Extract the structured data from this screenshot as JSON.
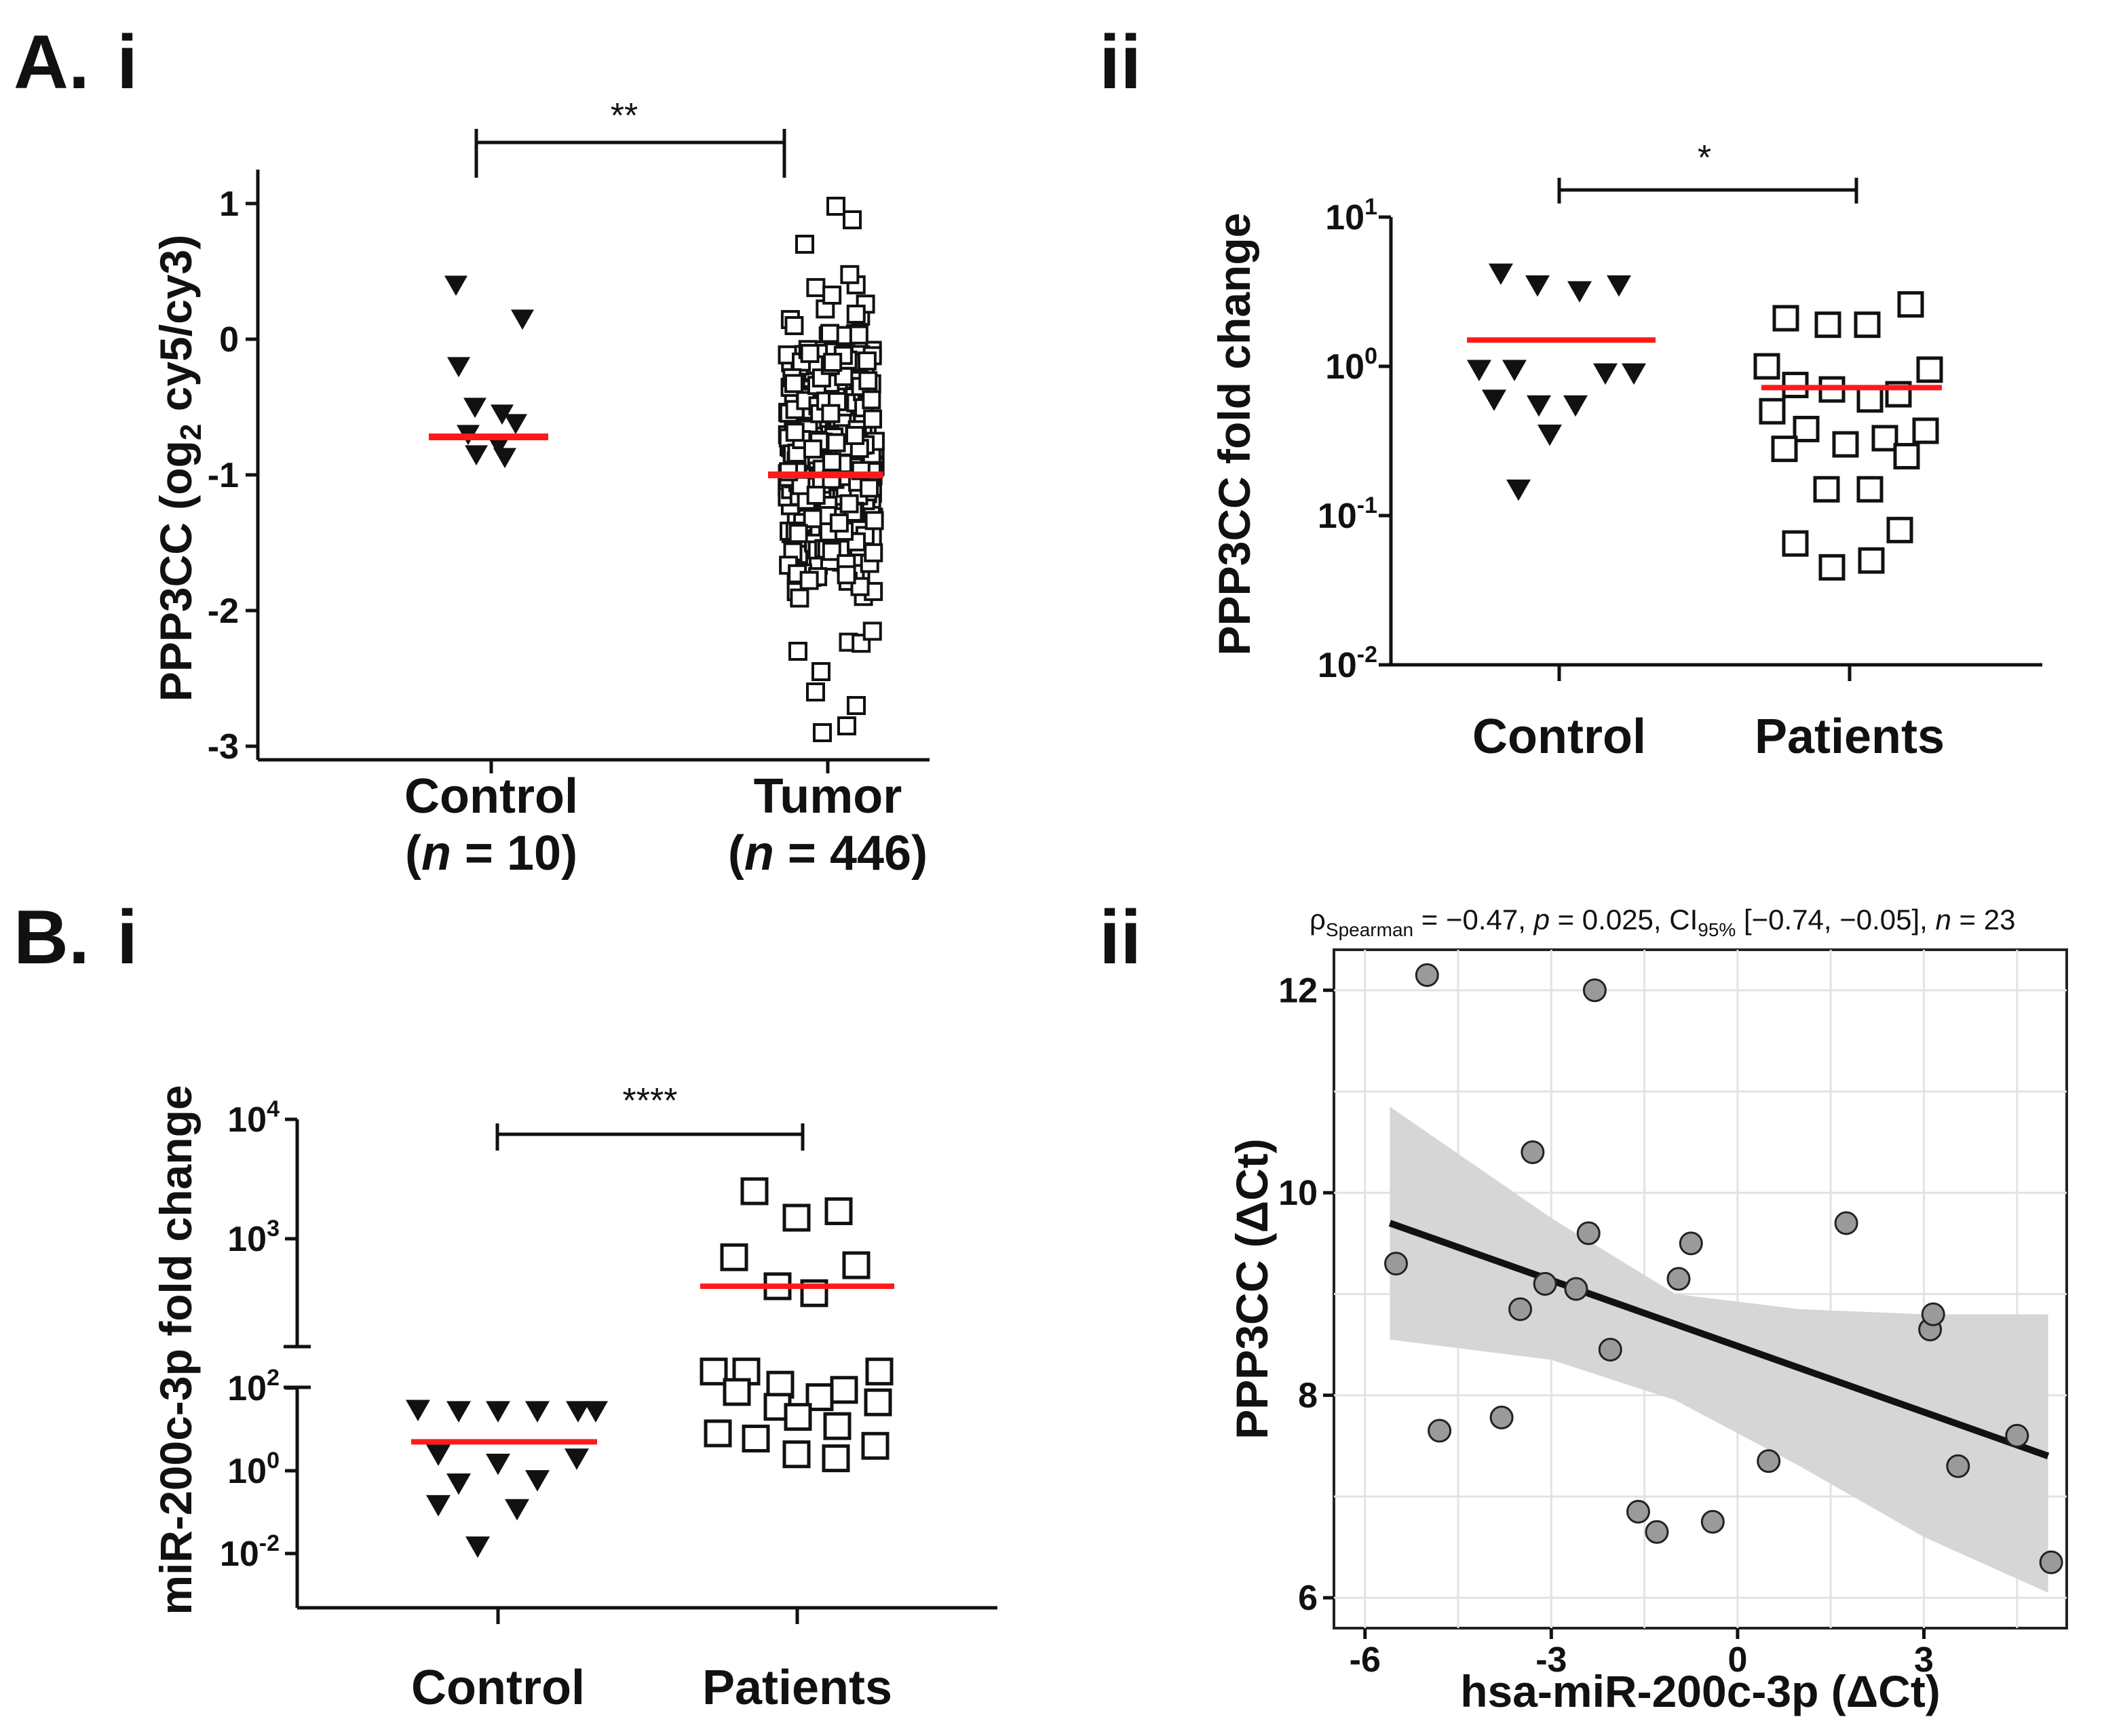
{
  "panel_labels": {
    "a": "A.",
    "a_i": "i",
    "a_ii": "ii",
    "b": "B.",
    "b_i": "i",
    "b_ii": "ii"
  },
  "colors": {
    "median_line": "#ff1a1a",
    "marker": "#111111",
    "scatter_fill": "#9a9a9a",
    "ci_band": "#d6d6d6"
  },
  "chart_data": [
    {
      "id": "A_i",
      "type": "scatter",
      "title": "",
      "ylabel_main": "PPP3CC (og",
      "ylabel_sub": "2",
      "ylabel_tail": " cy5/cy3)",
      "ylim": [
        -3,
        1
      ],
      "yticks": [
        1,
        0,
        -1,
        -2,
        -3
      ],
      "ytick_labels": [
        "1",
        "0",
        "-1",
        "-2",
        "-3"
      ],
      "categories": [
        {
          "label": "Control",
          "n_prefix": "(",
          "n_var": "n",
          "n_text": " = 10)",
          "marker": "triangle-down",
          "values": [
            0.4,
            0.15,
            -0.2,
            -0.5,
            -0.55,
            -0.62,
            -0.7,
            -0.78,
            -0.85,
            -0.87
          ],
          "median": -0.72
        },
        {
          "label": "Tumor",
          "n_prefix": "(",
          "n_var": "n",
          "n_text": " = 446)",
          "marker": "square-open",
          "range": [
            -2.9,
            0.98
          ],
          "n": 446,
          "median": -1.0,
          "outliers": [
            0.98,
            0.88,
            0.7,
            -2.3,
            -2.45,
            -2.6,
            -2.7,
            -2.85,
            -2.9
          ]
        }
      ],
      "significance": "**"
    },
    {
      "id": "A_ii",
      "type": "scatter",
      "ylabel": "PPP3CC fold change",
      "yscale": "log",
      "ylim_exp": [
        -2,
        1
      ],
      "ytick_exps": [
        1,
        0,
        -1,
        -2
      ],
      "ytick_base": "10",
      "ytick_exp_labels": [
        "1",
        "0",
        "-1",
        "-2"
      ],
      "categories": [
        {
          "label": "Control",
          "marker": "triangle-down",
          "values": [
            4.2,
            3.5,
            3.2,
            3.5,
            0.95,
            0.9,
            0.95,
            0.9,
            0.6,
            0.55,
            0.55,
            0.35,
            0.15
          ],
          "median": 1.5
        },
        {
          "label": "Patients",
          "marker": "square-open",
          "values": [
            2.6,
            2.1,
            1.9,
            1.9,
            1.0,
            0.95,
            0.75,
            0.7,
            0.65,
            0.6,
            0.5,
            0.38,
            0.37,
            0.33,
            0.3,
            0.28,
            0.25,
            0.15,
            0.15,
            0.08,
            0.065,
            0.05,
            0.045
          ],
          "median": 0.72
        }
      ],
      "significance": "*"
    },
    {
      "id": "B_i",
      "type": "scatter",
      "ylabel": "miR-200c-3p fold change",
      "yscale": "log-broken",
      "ytick_base": "10",
      "ytick_exp_labels": [
        "4",
        "3",
        "2",
        "0",
        "-2"
      ],
      "ytick_exps": [
        4,
        3,
        2,
        0,
        -2
      ],
      "categories": [
        {
          "label": "Control",
          "marker": "triangle-down",
          "values": [
            30,
            28,
            28,
            28,
            28,
            28,
            2.5,
            2.0,
            1.5,
            0.6,
            0.5,
            0.15,
            0.12,
            0.015
          ],
          "median": 5
        },
        {
          "label": "Patients",
          "marker": "square-open",
          "values": [
            2500,
            1700,
            1500,
            700,
            600,
            400,
            350,
            250,
            250,
            250,
            120,
            90,
            80,
            60,
            45,
            35,
            20,
            12,
            8,
            6,
            4,
            2.5,
            2.0
          ],
          "median": 400
        }
      ],
      "significance": "****"
    },
    {
      "id": "B_ii",
      "type": "scatter",
      "stat_rho": "ρ",
      "stat_rho_sub": "Spearman",
      "stat_mid1": " = −0.47, ",
      "stat_p": "p",
      "stat_mid2": " = 0.025, CI",
      "stat_ci_sub": "95%",
      "stat_mid3": " [−0.74, −0.05], ",
      "stat_n": "n",
      "stat_end": " = 23",
      "xlabel": "hsa-miR-200c-3p (ΔCt)",
      "ylabel": "PPP3CC (ΔCt)",
      "xlim": [
        -6.5,
        5.3
      ],
      "ylim": [
        5.7,
        12.4
      ],
      "xticks": [
        -6,
        -3,
        0,
        3
      ],
      "xtick_labels": [
        "-6",
        "-3",
        "0",
        "3"
      ],
      "yticks": [
        12,
        10,
        8,
        6
      ],
      "ytick_labels": [
        "12",
        "10",
        "8",
        "6"
      ],
      "points": [
        {
          "x": -5.5,
          "y": 9.3
        },
        {
          "x": -5.0,
          "y": 12.15
        },
        {
          "x": -4.8,
          "y": 7.65
        },
        {
          "x": -3.8,
          "y": 7.78
        },
        {
          "x": -3.5,
          "y": 8.85
        },
        {
          "x": -3.3,
          "y": 10.4
        },
        {
          "x": -3.1,
          "y": 9.1
        },
        {
          "x": -2.6,
          "y": 9.05
        },
        {
          "x": -2.4,
          "y": 9.6
        },
        {
          "x": -2.3,
          "y": 12.0
        },
        {
          "x": -2.05,
          "y": 8.45
        },
        {
          "x": -1.6,
          "y": 6.85
        },
        {
          "x": -1.3,
          "y": 6.65
        },
        {
          "x": -0.95,
          "y": 9.15
        },
        {
          "x": -0.75,
          "y": 9.5
        },
        {
          "x": -0.4,
          "y": 6.75
        },
        {
          "x": 0.5,
          "y": 7.35
        },
        {
          "x": 1.75,
          "y": 9.7
        },
        {
          "x": 3.1,
          "y": 8.65
        },
        {
          "x": 3.15,
          "y": 8.8
        },
        {
          "x": 3.55,
          "y": 7.3
        },
        {
          "x": 4.5,
          "y": 7.6
        },
        {
          "x": 5.05,
          "y": 6.35
        }
      ],
      "fit": {
        "x0": -5.6,
        "y0": 9.7,
        "x1": 5.0,
        "y1": 7.4
      },
      "ci_band": {
        "upper": [
          [
            -5.6,
            10.85
          ],
          [
            -3,
            9.75
          ],
          [
            -1,
            9.0
          ],
          [
            1,
            8.85
          ],
          [
            3,
            8.8
          ],
          [
            5,
            8.8
          ]
        ],
        "lower": [
          [
            -5.6,
            8.55
          ],
          [
            -3,
            8.35
          ],
          [
            -1,
            7.95
          ],
          [
            1,
            7.3
          ],
          [
            3,
            6.6
          ],
          [
            5,
            6.05
          ]
        ]
      }
    }
  ]
}
